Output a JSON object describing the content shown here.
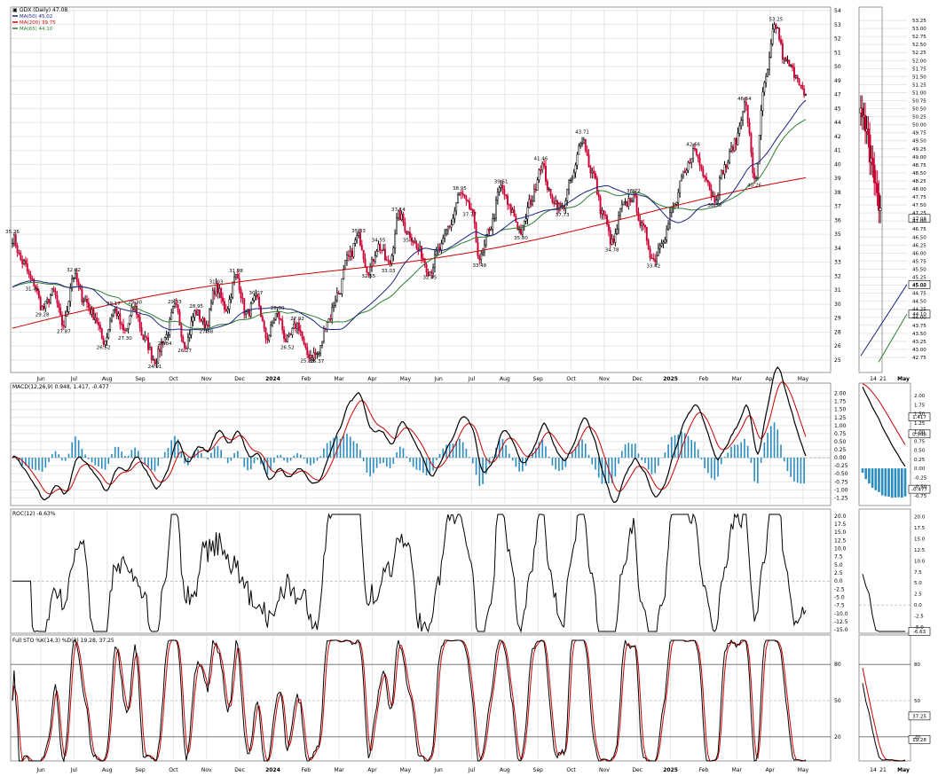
{
  "colors": {
    "price_up": "#000000",
    "price_down": "#cc0033",
    "ma50": "#1a237e",
    "ma200": "#cc0000",
    "ma65": "#2e7d32",
    "macd": "#000000",
    "macd_signal": "#cc0000",
    "histogram": "#2b8cbe",
    "roc": "#000000",
    "stoch_k": "#000000",
    "stoch_d": "#cc0000",
    "grid": "#e6e6e6"
  },
  "main_chart": {
    "header": {
      "prefix": "▣",
      "title": "GDX (Daily) 47.08",
      "ma50": "MA(50) 45.02",
      "ma200": "MA(200) 39.75",
      "ma65": "MA(65) 44.10"
    },
    "y_ticks": [
      "54",
      "53",
      "52",
      "51",
      "50",
      "49",
      "47",
      "45",
      "44",
      "42",
      "41",
      "40",
      "39",
      "38",
      "37",
      "36",
      "35",
      "34",
      "33",
      "32",
      "31",
      "30",
      "29",
      "28",
      "26",
      "25"
    ],
    "x_ticks": [
      "Jun",
      "Jul",
      "Aug",
      "Sep",
      "Oct",
      "Nov",
      "Dec",
      "2024",
      "Feb",
      "Mar",
      "Apr",
      "May",
      "Jun",
      "Jul",
      "Aug",
      "Sep",
      "Oct",
      "Nov",
      "Dec",
      "2025",
      "Feb",
      "Mar",
      "Apr",
      "May"
    ],
    "x_tick_bold": [
      "2024",
      "2025"
    ],
    "ylim": [
      24.0,
      54.5
    ]
  },
  "macd_panel": {
    "title": "MACD(12,26,9) 0.948, 1.417, -0.477",
    "y_ticks": [
      "2.00",
      "1.75",
      "1.50",
      "1.25",
      "1.00",
      "0.75",
      "0.50",
      "0.25",
      "0.00",
      "-0.25",
      "-0.50",
      "-0.75",
      "-1.00",
      "-1.25"
    ]
  },
  "roc_panel": {
    "title": "ROC(12) -6.63%",
    "y_ticks": [
      "20.0",
      "17.5",
      "15.0",
      "12.5",
      "10.0",
      "7.5",
      "5.0",
      "2.5",
      "0.0",
      "-2.5",
      "-5.0",
      "-7.5",
      "-10.0",
      "-12.5",
      "-15.0"
    ]
  },
  "sto_panel": {
    "title": "Full STO %K(14,3) %D(3) 19.28, 37.25",
    "y_ticks": [
      "80",
      "50",
      "20"
    ]
  },
  "zoom_panel": {
    "y_ticks": [
      "53.25",
      "53.00",
      "52.75",
      "52.50",
      "52.25",
      "52.00",
      "51.75",
      "51.50",
      "51.25",
      "51.00",
      "50.75",
      "50.50",
      "50.25",
      "50.00",
      "49.75",
      "49.50",
      "49.25",
      "49.00",
      "48.75",
      "48.50",
      "48.25",
      "48.00",
      "47.75",
      "47.50",
      "47.25",
      "47.00",
      "46.75",
      "46.50",
      "46.25",
      "46.00",
      "45.75",
      "45.50",
      "45.25",
      "45.00",
      "44.75",
      "44.50",
      "44.25",
      "44.00",
      "43.75",
      "43.50",
      "43.25",
      "43.00",
      "42.75"
    ],
    "ylim": [
      42.5,
      53.5
    ],
    "x_ticks": [
      "14",
      "21",
      "May"
    ],
    "price_badge": "47.08",
    "ma50_badge": "45.02",
    "ma65_badge": "44.10",
    "macd_ticks": [
      "2.00",
      "1.75",
      "1.50",
      "1.25",
      "1.00",
      "0.75",
      "0.50",
      "0.25",
      "0.00",
      "-0.25",
      "-0.50",
      "-0.75"
    ],
    "macd_badges": [
      "1.417",
      "0.948",
      "-0.477"
    ],
    "roc_ticks": [
      "20.0",
      "17.5",
      "15.0",
      "12.5",
      "10.0",
      "7.5",
      "5.0",
      "2.5",
      "0.0",
      "-2.5",
      "-5.0"
    ],
    "roc_badge": "-6.63",
    "sto_ticks": [
      "80",
      "50",
      "20"
    ],
    "sto_badges": [
      "37.25",
      "19.28"
    ]
  },
  "chart_data": {
    "type": "line",
    "title": "GDX (Daily) 47.08",
    "symbol": "GDX",
    "ylim": [
      24.0,
      54.5
    ],
    "price_pivots": [
      {
        "label": "Jun",
        "value": 35.26
      },
      {
        "label": "",
        "value": 33.2
      },
      {
        "label": "",
        "value": 31.46
      },
      {
        "label": "",
        "value": 29.28
      },
      {
        "label": "",
        "value": 30.6
      },
      {
        "label": "",
        "value": 27.87
      },
      {
        "label": "Jul",
        "value": 32.02
      },
      {
        "label": "",
        "value": 30.1
      },
      {
        "label": "Aug",
        "value": 28.7
      },
      {
        "label": "",
        "value": 26.52
      },
      {
        "label": "",
        "value": 29.17
      },
      {
        "label": "",
        "value": 27.3
      },
      {
        "label": "Sep",
        "value": 29.3
      },
      {
        "label": "",
        "value": 26.6
      },
      {
        "label": "Oct",
        "value": 24.91
      },
      {
        "label": "",
        "value": 26.84
      },
      {
        "label": "",
        "value": 29.33
      },
      {
        "label": "Nov",
        "value": 26.27
      },
      {
        "label": "",
        "value": 28.95
      },
      {
        "label": "",
        "value": 27.88
      },
      {
        "label": "Dec",
        "value": 31.03
      },
      {
        "label": "",
        "value": 29.3
      },
      {
        "label": "",
        "value": 31.98
      },
      {
        "label": "",
        "value": 28.8
      },
      {
        "label": "2024",
        "value": 30.07
      },
      {
        "label": "",
        "value": 26.8
      },
      {
        "label": "Feb",
        "value": 28.8
      },
      {
        "label": "",
        "value": 26.52
      },
      {
        "label": "",
        "value": 27.92
      },
      {
        "label": "",
        "value": 25.38
      },
      {
        "label": "Mar",
        "value": 25.37
      },
      {
        "label": "",
        "value": 28.3
      },
      {
        "label": "",
        "value": 30.5
      },
      {
        "label": "Apr",
        "value": 33.5
      },
      {
        "label": "",
        "value": 35.33
      },
      {
        "label": "",
        "value": 32.55
      },
      {
        "label": "",
        "value": 34.55
      },
      {
        "label": "May",
        "value": 33.03
      },
      {
        "label": "",
        "value": 37.14
      },
      {
        "label": "",
        "value": 35.61
      },
      {
        "label": "Jun",
        "value": 34.1
      },
      {
        "label": "",
        "value": 32.45
      },
      {
        "label": "",
        "value": 34.3
      },
      {
        "label": "Jul",
        "value": 36.3
      },
      {
        "label": "",
        "value": 38.95
      },
      {
        "label": "",
        "value": 37.77
      },
      {
        "label": "Aug",
        "value": 33.48
      },
      {
        "label": "",
        "value": 36.2
      },
      {
        "label": "",
        "value": 39.51
      },
      {
        "label": "Sep",
        "value": 37.6
      },
      {
        "label": "",
        "value": 35.8
      },
      {
        "label": "",
        "value": 38.4
      },
      {
        "label": "",
        "value": 41.46
      },
      {
        "label": "Oct",
        "value": 38.6
      },
      {
        "label": "",
        "value": 37.73
      },
      {
        "label": "",
        "value": 40.2
      },
      {
        "label": "",
        "value": 43.71
      },
      {
        "label": "",
        "value": 40.8
      },
      {
        "label": "Nov",
        "value": 37.4
      },
      {
        "label": "",
        "value": 34.78
      },
      {
        "label": "",
        "value": 37.9
      },
      {
        "label": "Dec",
        "value": 38.72
      },
      {
        "label": "",
        "value": 36.0
      },
      {
        "label": "",
        "value": 33.42
      },
      {
        "label": "2025",
        "value": 35.3
      },
      {
        "label": "",
        "value": 37.8
      },
      {
        "label": "Feb",
        "value": 40.5
      },
      {
        "label": "",
        "value": 42.66
      },
      {
        "label": "",
        "value": 40.8
      },
      {
        "label": "Mar",
        "value": 38.58
      },
      {
        "label": "",
        "value": 41.2
      },
      {
        "label": "",
        "value": 43.2
      },
      {
        "label": "",
        "value": 46.54
      },
      {
        "label": "Apr",
        "value": 40.26
      },
      {
        "label": "",
        "value": 48.5
      },
      {
        "label": "",
        "value": 53.25
      },
      {
        "label": "",
        "value": 50.1
      },
      {
        "label": "",
        "value": 49.2
      },
      {
        "label": "May",
        "value": 47.08
      }
    ],
    "price_labels": [
      {
        "value": 35.26,
        "text": "35.26"
      },
      {
        "value": 31.46,
        "text": "31.46"
      },
      {
        "value": 29.28,
        "text": "29.28"
      },
      {
        "value": 27.87,
        "text": "27.87"
      },
      {
        "value": 32.02,
        "text": "32.02"
      },
      {
        "value": 26.52,
        "text": "26.52"
      },
      {
        "value": 29.17,
        "text": "29.17"
      },
      {
        "value": 27.3,
        "text": "27.30"
      },
      {
        "value": 29.3,
        "text": "29.30"
      },
      {
        "value": 24.91,
        "text": "24.91"
      },
      {
        "value": 26.84,
        "text": "26.84"
      },
      {
        "value": 29.33,
        "text": "29.33"
      },
      {
        "value": 26.27,
        "text": "26.27"
      },
      {
        "value": 28.95,
        "text": "28.95"
      },
      {
        "value": 27.88,
        "text": "27.88"
      },
      {
        "value": 31.03,
        "text": "31.03"
      },
      {
        "value": 31.98,
        "text": "31.98"
      },
      {
        "value": 30.07,
        "text": "30.07"
      },
      {
        "value": 28.8,
        "text": "28.80"
      },
      {
        "value": 26.52,
        "text": "26.52"
      },
      {
        "value": 27.92,
        "text": "27.92"
      },
      {
        "value": 25.38,
        "text": "25.38"
      },
      {
        "value": 25.37,
        "text": "25.37"
      },
      {
        "value": 35.33,
        "text": "35.33"
      },
      {
        "value": 32.55,
        "text": "32.55"
      },
      {
        "value": 34.55,
        "text": "34.55"
      },
      {
        "value": 33.03,
        "text": "33.03"
      },
      {
        "value": 37.14,
        "text": "37.14"
      },
      {
        "value": 35.61,
        "text": "35.61"
      },
      {
        "value": 32.45,
        "text": "32.45"
      },
      {
        "value": 38.95,
        "text": "38.95"
      },
      {
        "value": 37.77,
        "text": "37.77"
      },
      {
        "value": 33.48,
        "text": "33.48"
      },
      {
        "value": 39.51,
        "text": "39.51"
      },
      {
        "value": 35.8,
        "text": "35.80"
      },
      {
        "value": 41.46,
        "text": "41.46"
      },
      {
        "value": 37.73,
        "text": "37.73"
      },
      {
        "value": 43.71,
        "text": "43.71"
      },
      {
        "value": 34.78,
        "text": "34.78"
      },
      {
        "value": 38.72,
        "text": "38.72"
      },
      {
        "value": 33.42,
        "text": "33.42"
      },
      {
        "value": 42.66,
        "text": "42.66"
      },
      {
        "value": 38.58,
        "text": "38.58"
      },
      {
        "value": 46.54,
        "text": "46.54"
      },
      {
        "value": 40.26,
        "text": "40.26"
      },
      {
        "value": 53.25,
        "text": "53.25"
      }
    ],
    "ma_levels_last": {
      "MA(50)": 45.02,
      "MA(200)": 39.75,
      "MA(65)": 44.1
    },
    "macd_last": {
      "macd": 0.948,
      "signal": 1.417,
      "histogram": -0.477
    },
    "roc_last": -6.63,
    "sto_last": {
      "k": 19.28,
      "d": 37.25
    }
  }
}
